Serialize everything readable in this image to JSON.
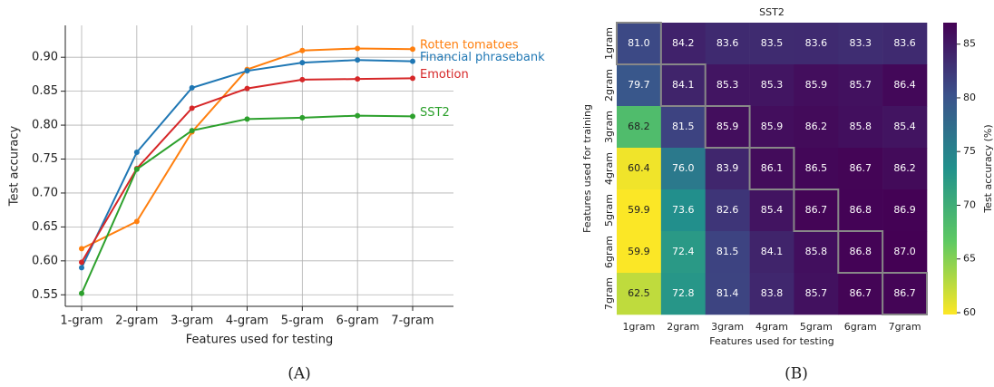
{
  "chart_data": [
    {
      "type": "line",
      "caption": "(A)",
      "x_label": "Features used for testing",
      "y_label": "Test accuracy",
      "categories": [
        "1-gram",
        "2-gram",
        "3-gram",
        "4-gram",
        "5-gram",
        "6-gram",
        "7-gram"
      ],
      "series": [
        {
          "name": "Rotten tomatoes",
          "color": "#ff7f0e",
          "values": [
            0.618,
            0.658,
            0.79,
            0.882,
            0.91,
            0.913,
            0.912
          ]
        },
        {
          "name": "Financial phrasebank",
          "color": "#1f77b4",
          "values": [
            0.59,
            0.76,
            0.855,
            0.88,
            0.892,
            0.896,
            0.894
          ]
        },
        {
          "name": "Emotion",
          "color": "#d62728",
          "values": [
            0.598,
            0.736,
            0.825,
            0.854,
            0.867,
            0.868,
            0.869
          ]
        },
        {
          "name": "SST2",
          "color": "#2ca02c",
          "values": [
            0.552,
            0.735,
            0.792,
            0.809,
            0.811,
            0.814,
            0.813
          ]
        }
      ],
      "ylim": [
        0.533,
        0.947
      ],
      "yticks": [
        0.55,
        {
          "value": 0.6,
          "label": "0.60"
        },
        0.65,
        {
          "value": 0.7,
          "label": "0.70"
        },
        0.75,
        {
          "value": 0.8,
          "label": "0.80"
        },
        0.85,
        {
          "value": 0.9,
          "label": "0.90"
        }
      ],
      "grid": true
    },
    {
      "type": "heatmap",
      "caption": "(B)",
      "title": "SST2",
      "x_label": "Features used for testing",
      "y_label": "Features used for training",
      "colorbar_label": "Test accuracy (%)",
      "colormap": "viridis",
      "x_categories": [
        "1gram",
        "2gram",
        "3gram",
        "4gram",
        "5gram",
        "6gram",
        "7gram"
      ],
      "y_categories": [
        "1gram",
        "2gram",
        "3gram",
        "4gram",
        "5gram",
        "6gram",
        "7gram"
      ],
      "values": [
        [
          81.0,
          84.2,
          83.6,
          83.5,
          83.6,
          83.3,
          83.6
        ],
        [
          79.7,
          84.1,
          85.3,
          85.3,
          85.9,
          85.7,
          86.4
        ],
        [
          68.2,
          81.5,
          85.9,
          85.9,
          86.2,
          85.8,
          85.4
        ],
        [
          60.4,
          76.0,
          83.9,
          86.1,
          86.5,
          86.7,
          86.2
        ],
        [
          59.9,
          73.6,
          82.6,
          85.4,
          86.7,
          86.8,
          86.9
        ],
        [
          59.9,
          72.4,
          81.5,
          84.1,
          85.8,
          86.8,
          87.0
        ],
        [
          62.5,
          72.8,
          81.4,
          83.8,
          85.7,
          86.7,
          86.7
        ]
      ],
      "value_labels": [
        [
          "81.0",
          "84.2",
          "83.6",
          "83.5",
          "83.6",
          "83.3",
          "83.6"
        ],
        [
          "79.7",
          "84.1",
          "85.3",
          "85.3",
          "85.9",
          "85.7",
          "86.4"
        ],
        [
          "68.2",
          "81.5",
          "85.9",
          "85.9",
          "86.2",
          "85.8",
          "85.4"
        ],
        [
          "60.4",
          "76.0",
          "83.9",
          "86.1",
          "86.5",
          "86.7",
          "86.2"
        ],
        [
          "59.9",
          "73.6",
          "82.6",
          "85.4",
          "86.7",
          "86.8",
          "86.9"
        ],
        [
          "59.9",
          "72.4",
          "81.5",
          "84.1",
          "85.8",
          "86.8",
          "87.0"
        ],
        [
          "62.5",
          "72.8",
          "81.4",
          "83.8",
          "85.7",
          "86.7",
          "86.7"
        ]
      ],
      "clim": [
        59.83,
        87.0
      ],
      "cticks": [
        60,
        65,
        70,
        75,
        80,
        85
      ]
    }
  ]
}
